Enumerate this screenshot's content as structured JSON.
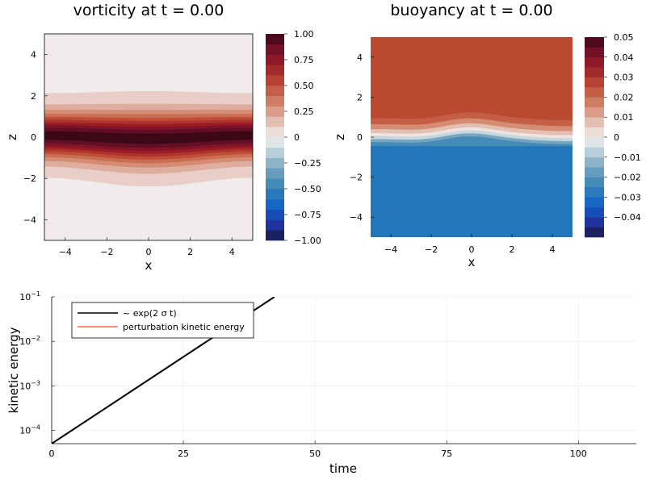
{
  "chart_data": [
    {
      "type": "heatmap",
      "title": "vorticity at t = 0.00",
      "xlabel": "x",
      "ylabel": "z",
      "xlim": [
        -5,
        5
      ],
      "ylim": [
        -5,
        5
      ],
      "xticks": [
        -4,
        -2,
        0,
        2,
        4
      ],
      "yticks": [
        -4,
        -2,
        0,
        2,
        4
      ],
      "xtick_labels": [
        "−4",
        "−2",
        "0",
        "2",
        "4"
      ],
      "ytick_labels": [
        "−4",
        "−2",
        "0",
        "2",
        "4"
      ],
      "colorbar": {
        "range": [
          -1.0,
          1.0
        ],
        "ticks": [
          -1.0,
          -0.75,
          -0.5,
          -0.25,
          0,
          0.25,
          0.5,
          0.75,
          1.0
        ],
        "tick_labels": [
          "−1.00",
          "−0.75",
          "−0.50",
          "−0.25",
          "0",
          "0.25",
          "0.50",
          "0.75",
          "1.00"
        ],
        "levels": 20
      },
      "field": "sech^2 shear layer centred at z = 0 with a gentle undulation in x"
    },
    {
      "type": "heatmap",
      "title": "buoyancy at t = 0.00",
      "xlabel": "x",
      "ylabel": "z",
      "xlim": [
        -5,
        5
      ],
      "ylim": [
        -5,
        5
      ],
      "xticks": [
        -4,
        -2,
        0,
        2,
        4
      ],
      "yticks": [
        -4,
        -2,
        0,
        2,
        4
      ],
      "xtick_labels": [
        "−4",
        "−2",
        "0",
        "2",
        "4"
      ],
      "ytick_labels": [
        "−4",
        "−2",
        "0",
        "2",
        "4"
      ],
      "colorbar": {
        "range": [
          -0.05,
          0.05
        ],
        "ticks": [
          -0.04,
          -0.03,
          -0.02,
          -0.01,
          0,
          0.01,
          0.02,
          0.03,
          0.04,
          0.05
        ],
        "tick_labels": [
          "−0.04",
          "−0.03",
          "−0.02",
          "−0.01",
          "0",
          "0.01",
          "0.02",
          "0.03",
          "0.04",
          "0.05"
        ],
        "levels": 20
      },
      "field": "tanh interface at z = 0 with a small bump near x = 0"
    },
    {
      "type": "line",
      "xlabel": "time",
      "ylabel": "kinetic energy",
      "xlim": [
        0,
        111
      ],
      "ylim": [
        5e-05,
        0.1
      ],
      "yscale": "log",
      "xticks": [
        0,
        25,
        50,
        75,
        100
      ],
      "xtick_labels": [
        "0",
        "25",
        "50",
        "75",
        "100"
      ],
      "ytick_exponents": [
        "−4",
        "−3",
        "−2",
        "−1"
      ],
      "ytick_base": "10",
      "legend_position": "top-left",
      "series": [
        {
          "name": "~ exp(2 σ t)",
          "color": "#000000",
          "x": [
            0,
            42.3
          ],
          "y": [
            5e-05,
            0.1
          ]
        },
        {
          "name": "perturbation kinetic energy",
          "color": "#e26f46",
          "x": [],
          "y": []
        }
      ]
    }
  ]
}
